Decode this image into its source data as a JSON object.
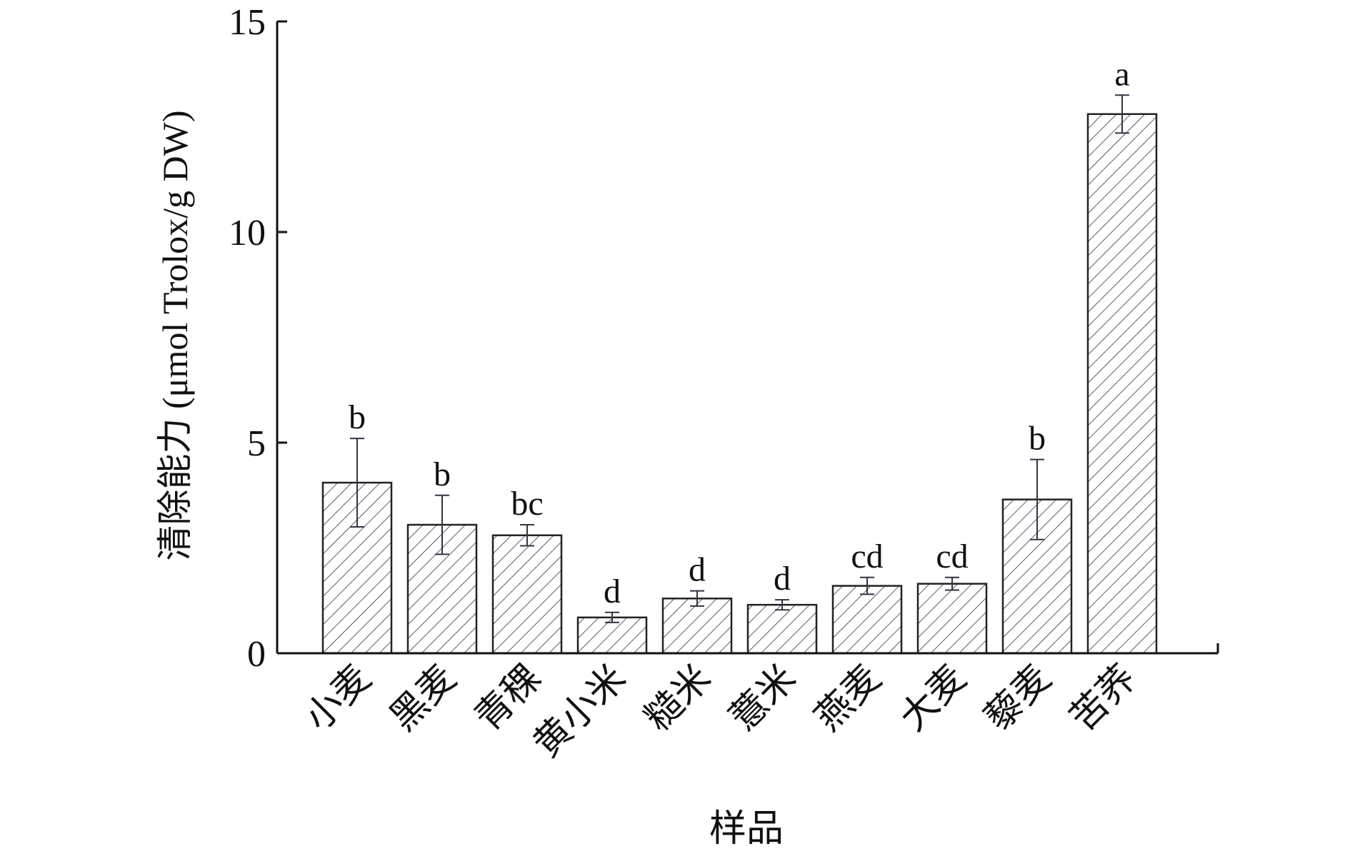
{
  "chart_data": {
    "type": "bar",
    "xlabel": "样品",
    "ylabel": "清除能力 (μmol Trolox/g DW)",
    "ylim": [
      0,
      15
    ],
    "yticks": [
      0,
      5,
      10,
      15
    ],
    "ytick_labels": [
      "0",
      "5",
      "10",
      "15"
    ],
    "grid": false,
    "legend": "none",
    "categories": [
      "小麦",
      "黑麦",
      "青稞",
      "黄小米",
      "糙米",
      "薏米",
      "燕麦",
      "大麦",
      "藜麦",
      "苦荞"
    ],
    "values": [
      4.05,
      3.05,
      2.8,
      0.85,
      1.3,
      1.15,
      1.6,
      1.65,
      3.65,
      12.8
    ],
    "errors": [
      1.05,
      0.7,
      0.25,
      0.12,
      0.18,
      0.12,
      0.2,
      0.15,
      0.95,
      0.45
    ],
    "significance_labels": [
      "b",
      "b",
      "bc",
      "d",
      "d",
      "d",
      "cd",
      "cd",
      "b",
      "a"
    ],
    "colors": {
      "bar_fill": "#ffffff",
      "bar_edge": "#222222",
      "hatch": "#333344",
      "axis": "#111111"
    }
  }
}
